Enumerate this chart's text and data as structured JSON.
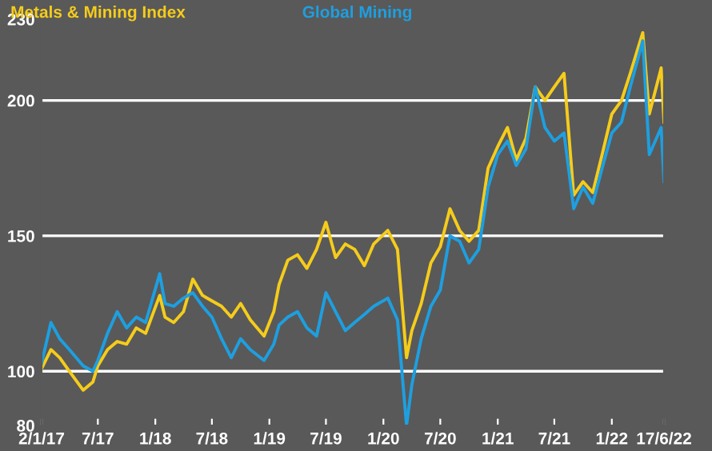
{
  "chart_data": {
    "type": "line",
    "x": [
      "2017-01-02",
      "2017-02-01",
      "2017-03-01",
      "2017-04-01",
      "2017-05-15",
      "2017-06-15",
      "2017-07-01",
      "2017-08-01",
      "2017-09-01",
      "2017-10-01",
      "2017-11-01",
      "2017-12-01",
      "2018-01-15",
      "2018-02-01",
      "2018-03-01",
      "2018-04-01",
      "2018-05-01",
      "2018-06-01",
      "2018-07-01",
      "2018-08-01",
      "2018-09-01",
      "2018-10-01",
      "2018-11-01",
      "2018-12-15",
      "2019-01-15",
      "2019-02-01",
      "2019-03-01",
      "2019-04-01",
      "2019-05-01",
      "2019-06-01",
      "2019-07-01",
      "2019-08-01",
      "2019-09-01",
      "2019-10-01",
      "2019-11-01",
      "2019-12-01",
      "2020-01-15",
      "2020-02-15",
      "2020-03-15",
      "2020-04-01",
      "2020-05-01",
      "2020-06-01",
      "2020-07-01",
      "2020-08-01",
      "2020-09-01",
      "2020-10-01",
      "2020-11-01",
      "2020-12-01",
      "2021-01-01",
      "2021-02-01",
      "2021-03-01",
      "2021-04-01",
      "2021-05-01",
      "2021-06-01",
      "2021-07-01",
      "2021-08-01",
      "2021-09-01",
      "2021-10-01",
      "2021-11-01",
      "2021-12-01",
      "2022-01-01",
      "2022-02-01",
      "2022-03-01",
      "2022-04-10",
      "2022-05-01",
      "2022-06-08",
      "2022-06-17"
    ],
    "series": [
      {
        "name": "Metals & Mining Index",
        "color": "#f5cc1b",
        "values": [
          101,
          108,
          105,
          100,
          93,
          96,
          102,
          108,
          111,
          110,
          116,
          114,
          128,
          120,
          118,
          122,
          134,
          128,
          126,
          124,
          120,
          125,
          119,
          113,
          122,
          132,
          141,
          143,
          138,
          145,
          155,
          142,
          147,
          145,
          139,
          147,
          152,
          145,
          105,
          115,
          125,
          140,
          146,
          160,
          152,
          148,
          152,
          175,
          183,
          190,
          178,
          186,
          205,
          200,
          205,
          210,
          165,
          170,
          166,
          180,
          195,
          200,
          210,
          225,
          195,
          212,
          192
        ]
      },
      {
        "name": "Global Mining",
        "color": "#1e9fe0",
        "values": [
          103,
          118,
          112,
          108,
          102,
          100,
          104,
          114,
          122,
          116,
          120,
          118,
          136,
          125,
          124,
          127,
          129,
          124,
          120,
          112,
          105,
          112,
          108,
          104,
          110,
          117,
          120,
          122,
          116,
          113,
          129,
          122,
          115,
          118,
          121,
          124,
          127,
          119,
          80,
          95,
          112,
          124,
          130,
          150,
          148,
          140,
          145,
          168,
          180,
          185,
          176,
          182,
          205,
          190,
          185,
          188,
          160,
          168,
          162,
          175,
          188,
          192,
          205,
          222,
          180,
          190,
          170
        ]
      }
    ],
    "ylim": [
      80,
      230
    ],
    "yticks": [
      80,
      100,
      150,
      200,
      230
    ],
    "xlim": [
      "2017-01-02",
      "2022-06-17"
    ],
    "xticks": [
      {
        "value": "2017-01-02",
        "label": "2/1/17"
      },
      {
        "value": "2017-07-01",
        "label": "7/17"
      },
      {
        "value": "2018-01-01",
        "label": "1/18"
      },
      {
        "value": "2018-07-01",
        "label": "7/18"
      },
      {
        "value": "2019-01-01",
        "label": "1/19"
      },
      {
        "value": "2019-07-01",
        "label": "7/19"
      },
      {
        "value": "2020-01-01",
        "label": "1/20"
      },
      {
        "value": "2020-07-01",
        "label": "7/20"
      },
      {
        "value": "2021-01-01",
        "label": "1/21"
      },
      {
        "value": "2021-07-01",
        "label": "7/21"
      },
      {
        "value": "2022-01-01",
        "label": "1/22"
      },
      {
        "value": "2022-06-17",
        "label": "17/6/22"
      }
    ],
    "grid": "y",
    "legend": "top",
    "marker": "none",
    "line_style": "solid"
  }
}
